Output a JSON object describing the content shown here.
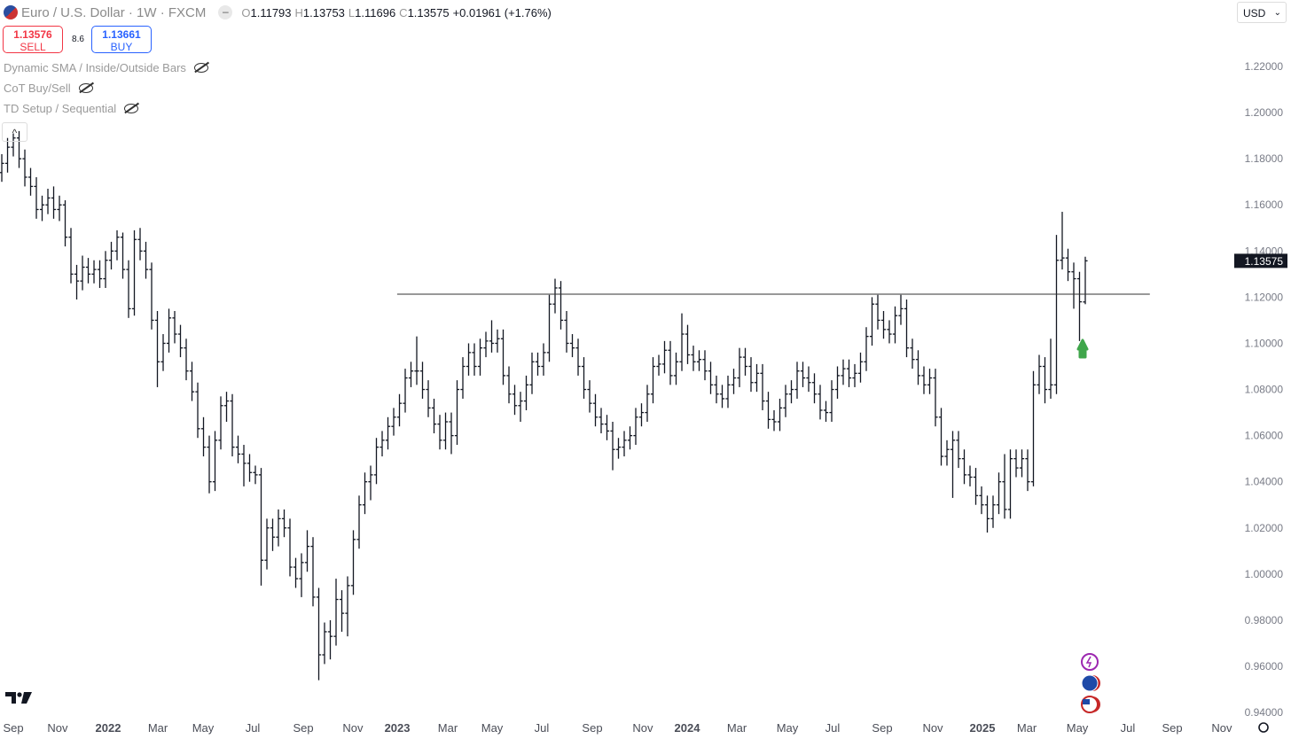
{
  "header": {
    "symbol": "Euro / U.S. Dollar · 1W · FXCM",
    "o": "O",
    "open": 1.11793,
    "h": "H",
    "high": 1.13753,
    "l": "L",
    "low": 1.11696,
    "c": "C",
    "close": 1.13575,
    "change": "+0.01961 (+1.76%)"
  },
  "trade": {
    "sell_price": 1.13576,
    "sell": "SELL",
    "spread": 8.6,
    "buy_price": 1.13661,
    "buy": "BUY"
  },
  "indicators": [
    "Dynamic SMA / Inside/Outside Bars",
    "CoT Buy/Sell",
    "TD Setup / Sequential"
  ],
  "currency": "USD",
  "chart_data": {
    "type": "ohlc",
    "xlim": [
      -0.31,
      213.54
    ],
    "ylim": [
      0.9385,
      1.2488
    ],
    "xticks": [
      {
        "value": 2.0,
        "label": "Sep"
      },
      {
        "value": 9.69,
        "label": "Nov"
      },
      {
        "value": 18.46,
        "label": "2022"
      },
      {
        "value": 27.08,
        "label": "Mar"
      },
      {
        "value": 34.92,
        "label": "May"
      },
      {
        "value": 43.54,
        "label": "Jul"
      },
      {
        "value": 52.31,
        "label": "Sep"
      },
      {
        "value": 60.92,
        "label": "Nov"
      },
      {
        "value": 68.62,
        "label": "2023"
      },
      {
        "value": 77.38,
        "label": "Mar"
      },
      {
        "value": 85.08,
        "label": "May"
      },
      {
        "value": 93.69,
        "label": "Jul"
      },
      {
        "value": 102.46,
        "label": "Sep"
      },
      {
        "value": 111.23,
        "label": "Nov"
      },
      {
        "value": 118.92,
        "label": "2024"
      },
      {
        "value": 127.54,
        "label": "Mar"
      },
      {
        "value": 136.31,
        "label": "May"
      },
      {
        "value": 144.15,
        "label": "Jul"
      },
      {
        "value": 152.77,
        "label": "Sep"
      },
      {
        "value": 161.54,
        "label": "Nov"
      },
      {
        "value": 170.15,
        "label": "2025"
      },
      {
        "value": 177.85,
        "label": "Mar"
      },
      {
        "value": 186.62,
        "label": "May"
      },
      {
        "value": 195.38,
        "label": "Jul"
      },
      {
        "value": 203.08,
        "label": "Sep"
      },
      {
        "value": 211.69,
        "label": "Nov"
      }
    ],
    "yticks": [
      {
        "value": 0.94,
        "label": "0.94000"
      },
      {
        "value": 0.96,
        "label": "0.96000"
      },
      {
        "value": 0.98,
        "label": "0.98000"
      },
      {
        "value": 1.0,
        "label": "1.00000"
      },
      {
        "value": 1.02,
        "label": "1.02000"
      },
      {
        "value": 1.04,
        "label": "1.04000"
      },
      {
        "value": 1.06,
        "label": "1.06000"
      },
      {
        "value": 1.08,
        "label": "1.08000"
      },
      {
        "value": 1.1,
        "label": "1.10000"
      },
      {
        "value": 1.12,
        "label": "1.12000"
      },
      {
        "value": 1.14,
        "label": "1.14000"
      },
      {
        "value": 1.16,
        "label": "1.16000"
      },
      {
        "value": 1.18,
        "label": "1.18000"
      },
      {
        "value": 1.2,
        "label": "1.20000"
      },
      {
        "value": 1.22,
        "label": "1.22000"
      }
    ],
    "color": "#131722",
    "last_price": 1.13575,
    "hline": {
      "value": 1.1213,
      "x": [
        68.6,
        199.2
      ]
    },
    "ohlc": [
      [
        1.174,
        1.182,
        1.17,
        1.178
      ],
      [
        1.178,
        1.189,
        1.174,
        1.185
      ],
      [
        1.185,
        1.191,
        1.181,
        1.189
      ],
      [
        1.189,
        1.192,
        1.176,
        1.18
      ],
      [
        1.18,
        1.184,
        1.168,
        1.172
      ],
      [
        1.172,
        1.176,
        1.164,
        1.168
      ],
      [
        1.168,
        1.172,
        1.154,
        1.158
      ],
      [
        1.158,
        1.164,
        1.153,
        1.16
      ],
      [
        1.16,
        1.167,
        1.156,
        1.163
      ],
      [
        1.163,
        1.168,
        1.154,
        1.158
      ],
      [
        1.158,
        1.164,
        1.153,
        1.16
      ],
      [
        1.16,
        1.162,
        1.142,
        1.146
      ],
      [
        1.146,
        1.15,
        1.126,
        1.13
      ],
      [
        1.13,
        1.134,
        1.119,
        1.127
      ],
      [
        1.127,
        1.138,
        1.123,
        1.133
      ],
      [
        1.133,
        1.137,
        1.126,
        1.13
      ],
      [
        1.13,
        1.136,
        1.126,
        1.132
      ],
      [
        1.132,
        1.136,
        1.124,
        1.128
      ],
      [
        1.128,
        1.14,
        1.124,
        1.136
      ],
      [
        1.136,
        1.144,
        1.132,
        1.14
      ],
      [
        1.14,
        1.149,
        1.136,
        1.146
      ],
      [
        1.146,
        1.148,
        1.128,
        1.132
      ],
      [
        1.132,
        1.136,
        1.111,
        1.115
      ],
      [
        1.115,
        1.149,
        1.112,
        1.145
      ],
      [
        1.145,
        1.15,
        1.136,
        1.14
      ],
      [
        1.14,
        1.144,
        1.128,
        1.132
      ],
      [
        1.132,
        1.135,
        1.106,
        1.11
      ],
      [
        1.11,
        1.114,
        1.081,
        1.092
      ],
      [
        1.092,
        1.104,
        1.088,
        1.1
      ],
      [
        1.1,
        1.115,
        1.096,
        1.111
      ],
      [
        1.111,
        1.114,
        1.1,
        1.104
      ],
      [
        1.104,
        1.108,
        1.094,
        1.098
      ],
      [
        1.098,
        1.102,
        1.084,
        1.088
      ],
      [
        1.088,
        1.092,
        1.075,
        1.079
      ],
      [
        1.079,
        1.083,
        1.059,
        1.063
      ],
      [
        1.063,
        1.068,
        1.051,
        1.055
      ],
      [
        1.055,
        1.06,
        1.035,
        1.04
      ],
      [
        1.04,
        1.062,
        1.036,
        1.058
      ],
      [
        1.058,
        1.077,
        1.054,
        1.073
      ],
      [
        1.073,
        1.079,
        1.066,
        1.075
      ],
      [
        1.075,
        1.078,
        1.051,
        1.055
      ],
      [
        1.055,
        1.06,
        1.048,
        1.052
      ],
      [
        1.052,
        1.056,
        1.038,
        1.048
      ],
      [
        1.048,
        1.052,
        1.04,
        1.044
      ],
      [
        1.044,
        1.047,
        1.039,
        1.043
      ],
      [
        1.043,
        1.046,
        0.995,
        1.006
      ],
      [
        1.006,
        1.024,
        1.002,
        1.02
      ],
      [
        1.02,
        1.024,
        1.01,
        1.016
      ],
      [
        1.016,
        1.028,
        1.012,
        1.024
      ],
      [
        1.024,
        1.028,
        1.016,
        1.02
      ],
      [
        1.02,
        1.024,
        0.999,
        1.003
      ],
      [
        1.003,
        1.007,
        0.994,
        0.998
      ],
      [
        0.998,
        1.009,
        0.99,
        1.005
      ],
      [
        1.005,
        1.019,
        1.001,
        1.012
      ],
      [
        1.012,
        1.016,
        0.986,
        0.99
      ],
      [
        0.99,
        0.994,
        0.954,
        0.965
      ],
      [
        0.965,
        0.979,
        0.961,
        0.975
      ],
      [
        0.975,
        0.98,
        0.963,
        0.973
      ],
      [
        0.973,
        0.998,
        0.969,
        0.989
      ],
      [
        0.989,
        0.993,
        0.975,
        0.983
      ],
      [
        0.983,
        0.999,
        0.973,
        0.995
      ],
      [
        0.995,
        1.019,
        0.991,
        1.015
      ],
      [
        1.015,
        1.034,
        1.011,
        1.03
      ],
      [
        1.03,
        1.044,
        1.026,
        1.04
      ],
      [
        1.04,
        1.047,
        1.032,
        1.043
      ],
      [
        1.043,
        1.059,
        1.039,
        1.055
      ],
      [
        1.055,
        1.062,
        1.051,
        1.058
      ],
      [
        1.058,
        1.068,
        1.054,
        1.064
      ],
      [
        1.064,
        1.072,
        1.06,
        1.068
      ],
      [
        1.068,
        1.078,
        1.064,
        1.074
      ],
      [
        1.074,
        1.089,
        1.07,
        1.085
      ],
      [
        1.085,
        1.092,
        1.081,
        1.088
      ],
      [
        1.088,
        1.103,
        1.082,
        1.088
      ],
      [
        1.088,
        1.092,
        1.076,
        1.08
      ],
      [
        1.08,
        1.084,
        1.068,
        1.072
      ],
      [
        1.072,
        1.076,
        1.061,
        1.065
      ],
      [
        1.065,
        1.069,
        1.054,
        1.058
      ],
      [
        1.058,
        1.07,
        1.054,
        1.066
      ],
      [
        1.066,
        1.07,
        1.052,
        1.06
      ],
      [
        1.06,
        1.084,
        1.056,
        1.08
      ],
      [
        1.08,
        1.094,
        1.076,
        1.09
      ],
      [
        1.09,
        1.1,
        1.086,
        1.096
      ],
      [
        1.096,
        1.1,
        1.086,
        1.09
      ],
      [
        1.09,
        1.102,
        1.086,
        1.098
      ],
      [
        1.098,
        1.105,
        1.094,
        1.101
      ],
      [
        1.101,
        1.11,
        1.096,
        1.1
      ],
      [
        1.1,
        1.106,
        1.096,
        1.102
      ],
      [
        1.102,
        1.106,
        1.082,
        1.086
      ],
      [
        1.086,
        1.09,
        1.074,
        1.078
      ],
      [
        1.078,
        1.082,
        1.069,
        1.073
      ],
      [
        1.073,
        1.079,
        1.066,
        1.075
      ],
      [
        1.075,
        1.086,
        1.071,
        1.082
      ],
      [
        1.082,
        1.096,
        1.078,
        1.092
      ],
      [
        1.092,
        1.096,
        1.086,
        1.09
      ],
      [
        1.09,
        1.1,
        1.086,
        1.096
      ],
      [
        1.096,
        1.121,
        1.092,
        1.117
      ],
      [
        1.117,
        1.128,
        1.113,
        1.124
      ],
      [
        1.124,
        1.127,
        1.106,
        1.11
      ],
      [
        1.11,
        1.114,
        1.096,
        1.1
      ],
      [
        1.1,
        1.104,
        1.094,
        1.098
      ],
      [
        1.098,
        1.102,
        1.086,
        1.09
      ],
      [
        1.09,
        1.094,
        1.076,
        1.08
      ],
      [
        1.08,
        1.084,
        1.07,
        1.074
      ],
      [
        1.074,
        1.078,
        1.064,
        1.068
      ],
      [
        1.068,
        1.072,
        1.061,
        1.065
      ],
      [
        1.065,
        1.069,
        1.058,
        1.062
      ],
      [
        1.062,
        1.066,
        1.045,
        1.054
      ],
      [
        1.054,
        1.059,
        1.05,
        1.055
      ],
      [
        1.055,
        1.062,
        1.051,
        1.058
      ],
      [
        1.058,
        1.064,
        1.054,
        1.06
      ],
      [
        1.06,
        1.072,
        1.056,
        1.068
      ],
      [
        1.068,
        1.074,
        1.064,
        1.07
      ],
      [
        1.07,
        1.082,
        1.066,
        1.078
      ],
      [
        1.078,
        1.094,
        1.074,
        1.09
      ],
      [
        1.09,
        1.095,
        1.086,
        1.091
      ],
      [
        1.091,
        1.101,
        1.087,
        1.097
      ],
      [
        1.097,
        1.101,
        1.082,
        1.086
      ],
      [
        1.086,
        1.096,
        1.082,
        1.092
      ],
      [
        1.092,
        1.113,
        1.088,
        1.104
      ],
      [
        1.104,
        1.108,
        1.091,
        1.095
      ],
      [
        1.095,
        1.099,
        1.088,
        1.092
      ],
      [
        1.092,
        1.097,
        1.088,
        1.093
      ],
      [
        1.093,
        1.097,
        1.084,
        1.088
      ],
      [
        1.088,
        1.092,
        1.078,
        1.082
      ],
      [
        1.082,
        1.086,
        1.074,
        1.078
      ],
      [
        1.078,
        1.082,
        1.072,
        1.076
      ],
      [
        1.076,
        1.086,
        1.072,
        1.082
      ],
      [
        1.082,
        1.089,
        1.078,
        1.085
      ],
      [
        1.085,
        1.098,
        1.081,
        1.094
      ],
      [
        1.094,
        1.098,
        1.086,
        1.09
      ],
      [
        1.09,
        1.094,
        1.079,
        1.083
      ],
      [
        1.083,
        1.091,
        1.079,
        1.087
      ],
      [
        1.087,
        1.091,
        1.071,
        1.075
      ],
      [
        1.075,
        1.079,
        1.063,
        1.067
      ],
      [
        1.067,
        1.071,
        1.062,
        1.066
      ],
      [
        1.066,
        1.076,
        1.062,
        1.072
      ],
      [
        1.072,
        1.082,
        1.068,
        1.078
      ],
      [
        1.078,
        1.084,
        1.074,
        1.08
      ],
      [
        1.08,
        1.092,
        1.076,
        1.088
      ],
      [
        1.088,
        1.092,
        1.081,
        1.085
      ],
      [
        1.085,
        1.09,
        1.079,
        1.083
      ],
      [
        1.083,
        1.087,
        1.074,
        1.078
      ],
      [
        1.078,
        1.082,
        1.067,
        1.071
      ],
      [
        1.071,
        1.075,
        1.066,
        1.07
      ],
      [
        1.07,
        1.084,
        1.066,
        1.08
      ],
      [
        1.08,
        1.09,
        1.076,
        1.086
      ],
      [
        1.086,
        1.093,
        1.082,
        1.089
      ],
      [
        1.089,
        1.093,
        1.081,
        1.085
      ],
      [
        1.085,
        1.091,
        1.081,
        1.087
      ],
      [
        1.087,
        1.096,
        1.083,
        1.092
      ],
      [
        1.092,
        1.107,
        1.088,
        1.103
      ],
      [
        1.103,
        1.12,
        1.099,
        1.117
      ],
      [
        1.117,
        1.121,
        1.106,
        1.11
      ],
      [
        1.11,
        1.114,
        1.102,
        1.106
      ],
      [
        1.106,
        1.11,
        1.1,
        1.104
      ],
      [
        1.104,
        1.116,
        1.1,
        1.112
      ],
      [
        1.112,
        1.121,
        1.108,
        1.115
      ],
      [
        1.115,
        1.119,
        1.094,
        1.098
      ],
      [
        1.098,
        1.102,
        1.089,
        1.093
      ],
      [
        1.093,
        1.097,
        1.082,
        1.086
      ],
      [
        1.086,
        1.09,
        1.078,
        1.082
      ],
      [
        1.082,
        1.089,
        1.078,
        1.085
      ],
      [
        1.085,
        1.089,
        1.064,
        1.068
      ],
      [
        1.068,
        1.072,
        1.047,
        1.051
      ],
      [
        1.051,
        1.058,
        1.047,
        1.054
      ],
      [
        1.054,
        1.062,
        1.033,
        1.058
      ],
      [
        1.058,
        1.062,
        1.046,
        1.05
      ],
      [
        1.05,
        1.054,
        1.039,
        1.043
      ],
      [
        1.043,
        1.047,
        1.038,
        1.042
      ],
      [
        1.042,
        1.046,
        1.03,
        1.034
      ],
      [
        1.034,
        1.038,
        1.026,
        1.03
      ],
      [
        1.03,
        1.034,
        1.018,
        1.024
      ],
      [
        1.024,
        1.034,
        1.02,
        1.03
      ],
      [
        1.03,
        1.044,
        1.026,
        1.04
      ],
      [
        1.04,
        1.052,
        1.024,
        1.028
      ],
      [
        1.028,
        1.054,
        1.024,
        1.05
      ],
      [
        1.05,
        1.054,
        1.042,
        1.046
      ],
      [
        1.046,
        1.054,
        1.042,
        1.05
      ],
      [
        1.05,
        1.054,
        1.036,
        1.04
      ],
      [
        1.04,
        1.088,
        1.038,
        1.082
      ],
      [
        1.082,
        1.095,
        1.078,
        1.09
      ],
      [
        1.09,
        1.094,
        1.074,
        1.08
      ],
      [
        1.08,
        1.102,
        1.076,
        1.082
      ],
      [
        1.082,
        1.147,
        1.078,
        1.136
      ],
      [
        1.136,
        1.157,
        1.132,
        1.137
      ],
      [
        1.137,
        1.141,
        1.127,
        1.131
      ],
      [
        1.131,
        1.135,
        1.115,
        1.128
      ],
      [
        1.128,
        1.131,
        1.101,
        1.118
      ],
      [
        1.11793,
        1.13753,
        1.11696,
        1.13575
      ]
    ]
  }
}
